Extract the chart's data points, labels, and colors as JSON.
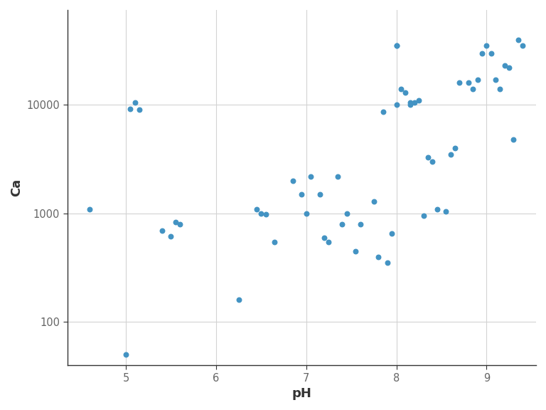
{
  "ph": [
    4.6,
    5.0,
    5.05,
    5.1,
    5.15,
    5.4,
    5.5,
    5.55,
    5.6,
    6.25,
    6.45,
    6.5,
    6.55,
    6.65,
    6.85,
    6.95,
    7.0,
    7.05,
    7.15,
    7.2,
    7.25,
    7.35,
    7.4,
    7.45,
    7.55,
    7.6,
    7.75,
    7.8,
    7.85,
    7.9,
    7.95,
    8.0,
    8.0,
    8.0,
    8.05,
    8.1,
    8.15,
    8.15,
    8.2,
    8.25,
    8.3,
    8.35,
    8.4,
    8.45,
    8.55,
    8.6,
    8.65,
    8.7,
    8.8,
    8.85,
    8.9,
    8.95,
    9.0,
    9.05,
    9.1,
    9.15,
    9.2,
    9.25,
    9.3,
    9.35,
    9.4
  ],
  "ca": [
    1100,
    50,
    9200,
    10500,
    9000,
    700,
    620,
    830,
    800,
    160,
    1100,
    1000,
    990,
    550,
    2000,
    1500,
    1000,
    2200,
    1500,
    600,
    550,
    2200,
    800,
    1000,
    450,
    800,
    1300,
    400,
    8700,
    350,
    650,
    35000,
    35000,
    10000,
    14000,
    13000,
    10000,
    10500,
    10500,
    11000,
    950,
    3300,
    3000,
    1100,
    1050,
    3500,
    4000,
    16000,
    16000,
    14000,
    17000,
    30000,
    35000,
    30000,
    17000,
    14000,
    23000,
    22000,
    4800,
    40000,
    35000
  ],
  "dot_color": "#4393C3",
  "panel_bg": "#FFFFFF",
  "fig_bg": "#FFFFFF",
  "grid_color": "#D3D3D3",
  "spine_color": "#333333",
  "tick_color": "#666666",
  "label_color": "#333333",
  "xlabel": "pH",
  "ylabel": "Ca",
  "xlabel_fontsize": 13,
  "ylabel_fontsize": 13,
  "xlabel_fontweight": "bold",
  "ylabel_fontweight": "bold",
  "tick_fontsize": 10.5,
  "dot_size": 22,
  "xlim": [
    4.35,
    9.55
  ],
  "ylim": [
    40,
    75000
  ],
  "yticks": [
    100,
    1000,
    10000
  ],
  "ytick_labels": [
    "100",
    "1000",
    "10000"
  ],
  "xticks": [
    5,
    6,
    7,
    8,
    9
  ]
}
